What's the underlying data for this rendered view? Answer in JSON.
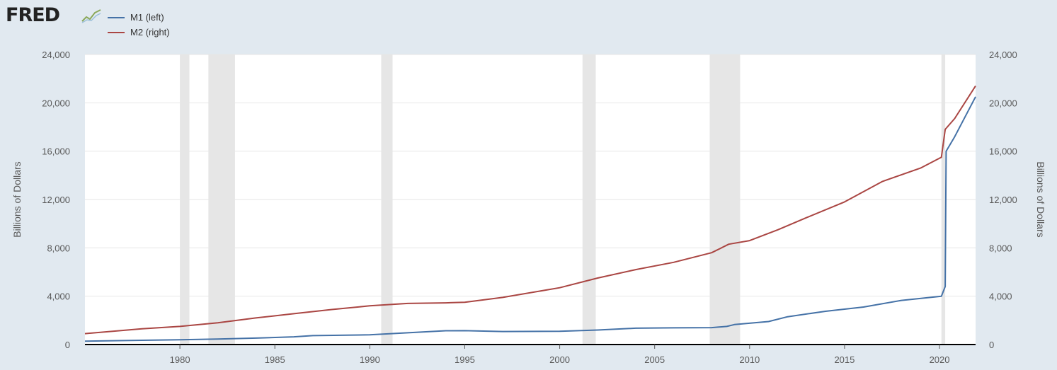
{
  "header": {
    "logo_text": "FRED",
    "logo_icon": "line-chart-icon"
  },
  "chart_data": {
    "type": "line",
    "legend": [
      {
        "name": "M1 (left)",
        "color": "#4572a7"
      },
      {
        "name": "M2 (right)",
        "color": "#aa4643"
      }
    ],
    "y_left": {
      "label": "Billions of Dollars",
      "ylim": [
        0,
        24000
      ],
      "ticks": [
        "0",
        "4,000",
        "8,000",
        "12,000",
        "16,000",
        "20,000",
        "24,000"
      ]
    },
    "y_right": {
      "label": "Billions of Dollars",
      "ylim": [
        0,
        24000
      ],
      "ticks": [
        "0",
        "4,000",
        "8,000",
        "12,000",
        "16,000",
        "20,000",
        "24,000"
      ]
    },
    "x": {
      "range": [
        1975.0,
        2021.9
      ],
      "ticks": [
        "1980",
        "1985",
        "1990",
        "1995",
        "2000",
        "2005",
        "2010",
        "2015",
        "2020"
      ]
    },
    "grid": true,
    "recessions": [
      [
        1980.0,
        1980.5
      ],
      [
        1981.5,
        1982.9
      ],
      [
        1990.6,
        1991.2
      ],
      [
        2001.2,
        2001.9
      ],
      [
        2007.9,
        2009.5
      ],
      [
        2020.1,
        2020.3
      ]
    ],
    "series": [
      {
        "name": "M1 (left)",
        "axis": "left",
        "color": "#4572a7",
        "points": [
          [
            1975.0,
            280
          ],
          [
            1978.0,
            350
          ],
          [
            1980.0,
            390
          ],
          [
            1982.0,
            450
          ],
          [
            1984.0,
            530
          ],
          [
            1986.0,
            640
          ],
          [
            1987.0,
            740
          ],
          [
            1990.0,
            800
          ],
          [
            1992.0,
            970
          ],
          [
            1994.0,
            1140
          ],
          [
            1995.0,
            1150
          ],
          [
            1997.0,
            1080
          ],
          [
            2000.0,
            1100
          ],
          [
            2002.0,
            1200
          ],
          [
            2004.0,
            1350
          ],
          [
            2006.0,
            1380
          ],
          [
            2008.0,
            1400
          ],
          [
            2008.8,
            1500
          ],
          [
            2009.2,
            1650
          ],
          [
            2011.0,
            1900
          ],
          [
            2012.0,
            2300
          ],
          [
            2014.0,
            2750
          ],
          [
            2016.0,
            3100
          ],
          [
            2018.0,
            3650
          ],
          [
            2020.1,
            4000
          ],
          [
            2020.3,
            4800
          ],
          [
            2020.35,
            16000
          ],
          [
            2020.8,
            17200
          ],
          [
            2021.9,
            20500
          ]
        ]
      },
      {
        "name": "M2 (right)",
        "axis": "right",
        "color": "#aa4643",
        "points": [
          [
            1975.0,
            900
          ],
          [
            1978.0,
            1300
          ],
          [
            1980.0,
            1500
          ],
          [
            1982.0,
            1800
          ],
          [
            1984.0,
            2200
          ],
          [
            1986.0,
            2550
          ],
          [
            1988.0,
            2900
          ],
          [
            1990.0,
            3200
          ],
          [
            1992.0,
            3400
          ],
          [
            1994.0,
            3450
          ],
          [
            1995.0,
            3500
          ],
          [
            1997.0,
            3900
          ],
          [
            2000.0,
            4700
          ],
          [
            2002.0,
            5500
          ],
          [
            2004.0,
            6200
          ],
          [
            2006.0,
            6800
          ],
          [
            2008.0,
            7600
          ],
          [
            2008.9,
            8300
          ],
          [
            2010.0,
            8600
          ],
          [
            2011.5,
            9500
          ],
          [
            2013.0,
            10500
          ],
          [
            2015.0,
            11800
          ],
          [
            2017.0,
            13500
          ],
          [
            2019.0,
            14600
          ],
          [
            2020.1,
            15500
          ],
          [
            2020.3,
            17800
          ],
          [
            2020.8,
            18700
          ],
          [
            2021.9,
            21400
          ]
        ]
      }
    ]
  }
}
